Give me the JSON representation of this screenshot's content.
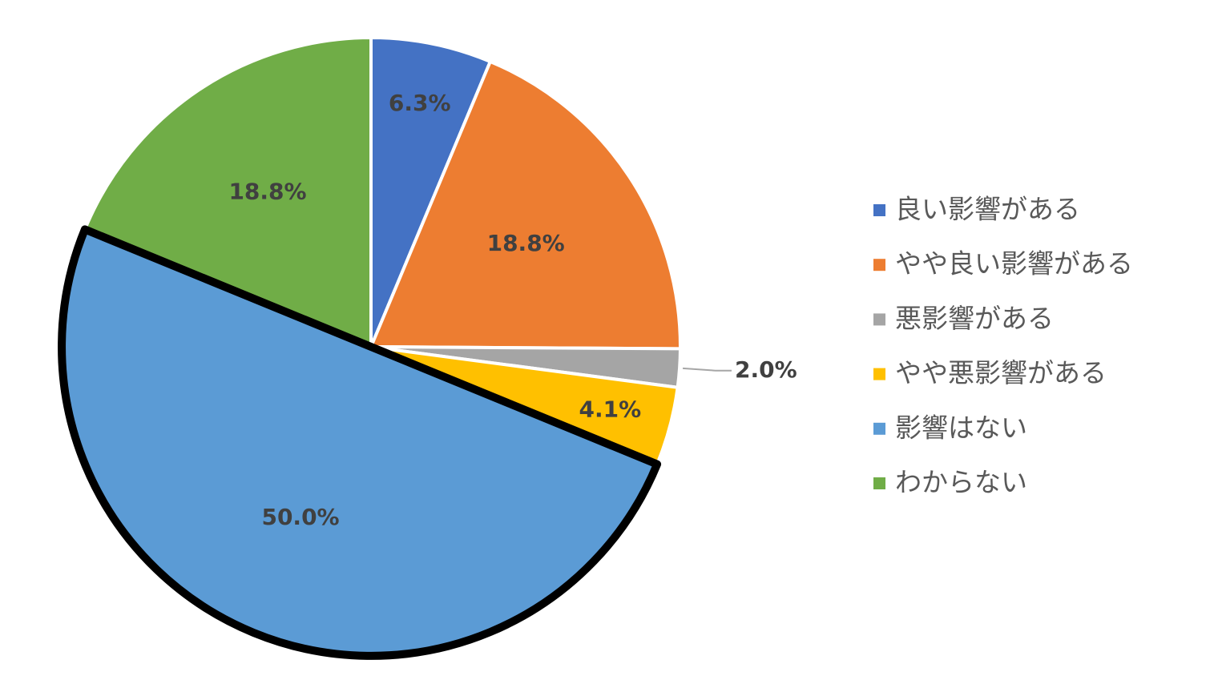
{
  "chart_data": {
    "type": "pie",
    "categories": [
      "良い影響がある",
      "やや良い影響がある",
      "悪影響がある",
      "やや悪影響がある",
      "影響はない",
      "わからない"
    ],
    "values": [
      6.3,
      18.8,
      2.0,
      4.1,
      50.0,
      18.8
    ],
    "value_labels": [
      "6.3%",
      "18.8%",
      "2.0%",
      "4.1%",
      "50.0%",
      "18.8%"
    ],
    "colors": [
      "#4472c4",
      "#ed7d31",
      "#a5a5a5",
      "#ffc000",
      "#5b9bd5",
      "#70ad47"
    ],
    "highlight": 4,
    "legend": "right"
  }
}
